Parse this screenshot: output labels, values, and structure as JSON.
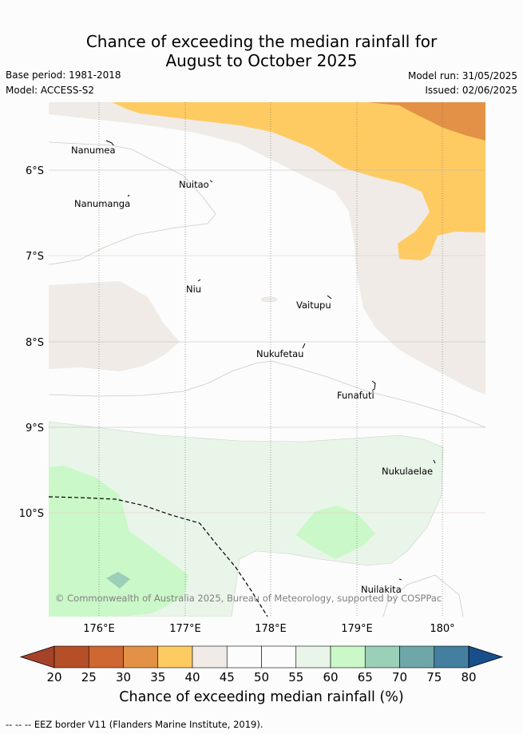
{
  "title": {
    "line1": "Chance of exceeding the median rainfall for",
    "line2": "August to October 2025"
  },
  "meta": {
    "base_period": "Base period: 1981-2018",
    "model": "Model: ACCESS-S2",
    "model_run": "Model run: 31/05/2025",
    "issued": "Issued: 02/06/2025"
  },
  "map": {
    "lat_labels": [
      "6°S",
      "7°S",
      "8°S",
      "9°S",
      "10°S"
    ],
    "lon_labels": [
      "176°E",
      "177°E",
      "178°E",
      "179°E",
      "180°"
    ],
    "islands": [
      {
        "name": "Nanumea"
      },
      {
        "name": "Nuitao"
      },
      {
        "name": "Nanumanga"
      },
      {
        "name": "Niu"
      },
      {
        "name": "Vaitupu"
      },
      {
        "name": "Nukufetau"
      },
      {
        "name": "Funafuti"
      },
      {
        "name": "Nukulaelae"
      },
      {
        "name": "Nuilakita"
      }
    ],
    "copyright": "© Commonwealth of Australia 2025, Bureau of Meteorology, supported by COSPPac"
  },
  "colorbar": {
    "ticks": [
      "20",
      "25",
      "30",
      "35",
      "40",
      "45",
      "50",
      "55",
      "60",
      "65",
      "70",
      "75",
      "80"
    ],
    "colors": [
      "#a6422a",
      "#b54f28",
      "#cf6733",
      "#e29146",
      "#fecb63",
      "#f0ebe6",
      "#fbfcfb",
      "#fbfcfb",
      "#e9f5e9",
      "#caf8c8",
      "#9bcfb7",
      "#6fa7a8",
      "#447fa0",
      "#174f8b"
    ],
    "title": "Chance of exceeding median rainfall (%)"
  },
  "footer": "-- -- -- EEZ border V11 (Flanders Marine Institute, 2019)."
}
